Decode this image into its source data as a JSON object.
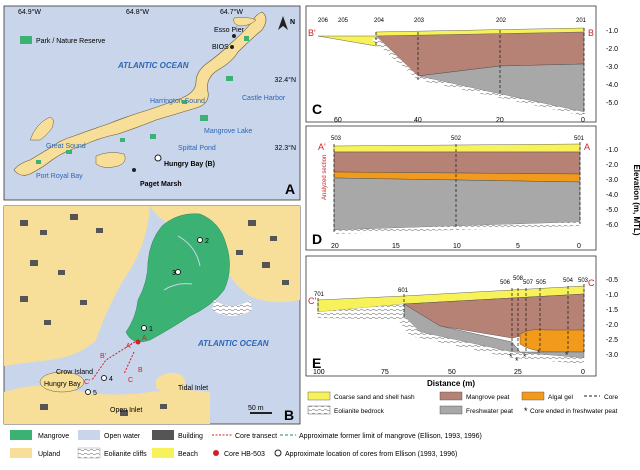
{
  "colors": {
    "upland": "#f7df9a",
    "water": "#c9d5ea",
    "mangrove": "#3bb273",
    "sand": "#f7f25a",
    "peat": "#b78276",
    "fresh": "#a8a8a8",
    "gel": "#f29a1b",
    "building": "#555555",
    "label_blue": "#2d66b5",
    "red": "#d21f26"
  },
  "panelA": {
    "letter": "A",
    "lon_labels": [
      "64.9°W",
      "64.8°W",
      "64.7°W"
    ],
    "lat_labels": [
      "32.4°N",
      "32.3°N"
    ],
    "legend_park": "Park / Nature Reserve",
    "ocean": "ATLANTIC OCEAN",
    "north": "N",
    "places": {
      "esso": "Esso Pier",
      "bios": "BIOS",
      "harrington": "Harrington Sound",
      "castle": "Castle Harbor",
      "mangrove_lake": "Mangrove Lake",
      "great_sound": "Great Sound",
      "spittal": "Spittal Pond",
      "hungry": "Hungry Bay (B)",
      "port_royal": "Port Royal Bay",
      "paget": "Paget Marsh"
    }
  },
  "panelB": {
    "letter": "B",
    "ocean": "ATLANTIC OCEAN",
    "scale": "50 m",
    "crow": "Crow Island",
    "hungry": "Hungry Bay",
    "tidal": "Tidal Inlet",
    "open": "Open Inlet",
    "cores": [
      "1",
      "2",
      "3",
      "4",
      "5"
    ],
    "transect": [
      "A",
      "A'",
      "B",
      "B'",
      "C",
      "C'"
    ]
  },
  "panelC": {
    "letter": "C",
    "end_left": "B'",
    "end_right": "B",
    "cores": [
      "206",
      "205",
      "204",
      "203",
      "202",
      "201"
    ],
    "xticks": [
      "60",
      "40",
      "20",
      "0"
    ],
    "yticks": [
      "-1.0",
      "-2.0",
      "-3.0",
      "-4.0",
      "-5.0"
    ]
  },
  "panelD": {
    "letter": "D",
    "end_left": "A'",
    "end_right": "A",
    "cores": [
      "503",
      "502",
      "501"
    ],
    "xticks": [
      "20",
      "15",
      "10",
      "5",
      "0"
    ],
    "yticks": [
      "-1.0",
      "-2.0",
      "-3.0",
      "-4.0",
      "-5.0",
      "-6.0"
    ],
    "analyzed": "Analyzed section"
  },
  "panelE": {
    "letter": "E",
    "end_left": "C'",
    "end_right": "C",
    "cores": [
      "701",
      "601",
      "506",
      "508",
      "507",
      "505",
      "504",
      "503"
    ],
    "xticks": [
      "100",
      "75",
      "50",
      "25",
      "0"
    ],
    "yticks": [
      "-0.5",
      "-1.0",
      "-1.5",
      "-2.0",
      "-2.5",
      "-3.0"
    ]
  },
  "axes": {
    "ylabel": "Elevation (m, MTL)",
    "xlabel": "Distance (m)"
  },
  "legend_top": [
    {
      "swatch": "sand",
      "label": "Coarse sand and shell hash"
    },
    {
      "swatch": "peat",
      "label": "Mangrove peat"
    },
    {
      "swatch": "gel",
      "label": "Algal gel"
    },
    {
      "swatch": "core",
      "label": "Core"
    },
    {
      "swatch": "bedrock",
      "label": "Eolianite bedrock"
    },
    {
      "swatch": "fresh",
      "label": "Freshwater peat"
    },
    {
      "swatch": "star",
      "label": "Core ended in freshwater peat"
    }
  ],
  "legend_bottom": [
    {
      "swatch": "mangrove",
      "label": "Mangrove"
    },
    {
      "swatch": "water",
      "label": "Open water"
    },
    {
      "swatch": "building",
      "label": "Building"
    },
    {
      "swatch": "transect",
      "label": "Core transect"
    },
    {
      "swatch": "former",
      "label": "Approximate former limit of mangrove (Ellison, 1993, 1996)"
    },
    {
      "swatch": "upland",
      "label": "Upland"
    },
    {
      "swatch": "cliff",
      "label": "Eolianite cliffs"
    },
    {
      "swatch": "beach",
      "label": "Beach"
    },
    {
      "swatch": "redcore",
      "label": "Core HB-503"
    },
    {
      "swatch": "ring",
      "label": "Approximate location of cores from Ellison (1993, 1996)"
    }
  ]
}
